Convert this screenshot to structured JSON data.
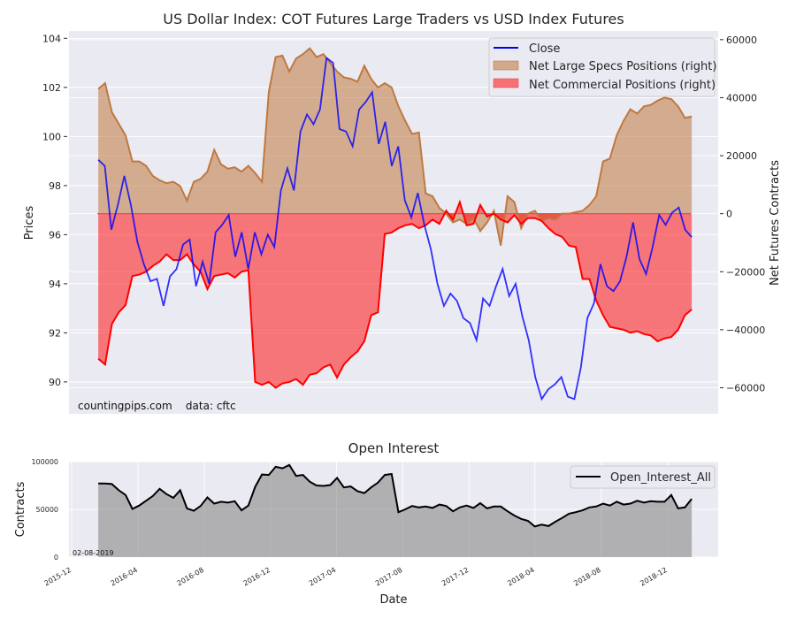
{
  "chart_data": [
    {
      "type": "line",
      "title": "US Dollar Index: COT Futures Large Traders vs USD Index Futures",
      "xlabel": "",
      "ylabel": "Prices",
      "y2label": "Net Futures Contracts",
      "ylim": [
        88.7,
        104.3
      ],
      "y2lim": [
        -69000,
        63000
      ],
      "yticks": [
        "90",
        "92",
        "94",
        "96",
        "98",
        "100",
        "102",
        "104"
      ],
      "y2ticks": [
        "−60000",
        "−40000",
        "−20000",
        "0",
        "20000",
        "40000",
        "60000"
      ],
      "grid": true,
      "legend_position": "top-right",
      "annotation": "countingpips.com    data: cftc",
      "x_start": "2016-01-19",
      "x_step_days": 14,
      "series": [
        {
          "name": "Close",
          "axis": "left",
          "style": "line",
          "color": "#0000ff",
          "values": [
            99.05,
            98.8,
            96.2,
            97.2,
            98.4,
            97.2,
            95.7,
            94.8,
            94.1,
            94.2,
            93.1,
            94.3,
            94.6,
            95.6,
            95.8,
            93.9,
            94.9,
            94.0,
            96.1,
            96.4,
            96.8,
            95.1,
            96.1,
            94.6,
            96.1,
            95.2,
            96.0,
            95.5,
            97.8,
            98.7,
            97.8,
            100.2,
            100.9,
            100.5,
            101.1,
            103.2,
            103.0,
            100.3,
            100.2,
            99.6,
            101.1,
            101.4,
            101.8,
            99.7,
            100.6,
            98.8,
            99.6,
            97.4,
            96.7,
            97.7,
            96.4,
            95.4,
            94.0,
            93.1,
            93.6,
            93.3,
            92.6,
            92.4,
            91.7,
            93.4,
            93.1,
            93.9,
            94.6,
            93.5,
            94.0,
            92.7,
            91.7,
            90.2,
            89.3,
            89.7,
            89.9,
            90.2,
            89.4,
            89.3,
            90.6,
            92.6,
            93.2,
            94.8,
            93.9,
            93.7,
            94.1,
            95.1,
            96.5,
            95.0,
            94.4,
            95.5,
            96.8,
            96.4,
            96.9,
            97.1,
            96.2,
            95.9
          ]
        },
        {
          "name": "Net Large Specs Positions (right)",
          "axis": "right",
          "style": "area",
          "color": "#c07840",
          "values": [
            43000,
            45000,
            35000,
            31000,
            27000,
            18000,
            18000,
            16500,
            13000,
            11500,
            10500,
            11000,
            9500,
            4500,
            11000,
            12000,
            14500,
            22000,
            17000,
            15500,
            16000,
            14500,
            16500,
            14000,
            11000,
            42000,
            54000,
            54500,
            49000,
            53500,
            55000,
            57000,
            54000,
            55000,
            52000,
            49000,
            47000,
            46500,
            45500,
            51000,
            46500,
            43500,
            45000,
            43500,
            37000,
            32000,
            27500,
            28000,
            7000,
            6000,
            2000,
            0,
            -3000,
            -2000,
            -3500,
            -1500,
            -6000,
            -3000,
            1000,
            -11000,
            6000,
            4000,
            -5000,
            0,
            1000,
            -2500,
            -1500,
            -2000,
            0,
            0,
            500,
            1000,
            3000,
            6000,
            18000,
            19000,
            27000,
            32000,
            36000,
            34500,
            37000,
            37500,
            39000,
            40000,
            39500,
            37000,
            33000,
            33500
          ]
        },
        {
          "name": "Net Commercial Positions (right)",
          "axis": "right",
          "style": "area",
          "color": "#ff0000",
          "values": [
            -50000,
            -52000,
            -38000,
            -34000,
            -31500,
            -21500,
            -21000,
            -20000,
            -18000,
            -16500,
            -14000,
            -16000,
            -16000,
            -14000,
            -17500,
            -20000,
            -26000,
            -21500,
            -21000,
            -20500,
            -22000,
            -20000,
            -19500,
            -58000,
            -59000,
            -58000,
            -60000,
            -58500,
            -58000,
            -57000,
            -59000,
            -55500,
            -55000,
            -53000,
            -52000,
            -56500,
            -52000,
            -49500,
            -47500,
            -44000,
            -35000,
            -34000,
            -7000,
            -6500,
            -5000,
            -4000,
            -3500,
            -5000,
            -4000,
            -2000,
            -3500,
            1000,
            -2000,
            4000,
            -4000,
            -3500,
            3000,
            -1000,
            0,
            -2000,
            -3000,
            -500,
            -3500,
            -1500,
            -1500,
            -2500,
            -5000,
            -7000,
            -8000,
            -11000,
            -11500,
            -22500,
            -22500,
            -30000,
            -35000,
            -39000,
            -39500,
            -40000,
            -41000,
            -40500,
            -41500,
            -42000,
            -44000,
            -43000,
            -42500,
            -40000,
            -35000,
            -33000
          ]
        }
      ]
    },
    {
      "type": "area",
      "title": "Open Interest",
      "xlabel": "Date",
      "ylabel": "Contracts",
      "ylim": [
        0,
        100000
      ],
      "yticks": [
        "0",
        "50000",
        "100000"
      ],
      "xticks": [
        "2015-12",
        "2016-04",
        "2016-08",
        "2016-12",
        "2017-04",
        "2017-08",
        "2017-12",
        "2018-04",
        "2018-08",
        "2018-12"
      ],
      "grid": true,
      "legend_position": "top-right",
      "annotation": "02-08-2019",
      "x_start": "2016-01-19",
      "x_step_days": 14,
      "series": [
        {
          "name": "Open_Interest_All",
          "color": "#000000",
          "fill": "#b3b2b6",
          "values": [
            77000,
            77000,
            76500,
            70000,
            65000,
            50500,
            54000,
            59000,
            64000,
            71500,
            66000,
            62000,
            70000,
            51000,
            48500,
            53500,
            62500,
            56000,
            58000,
            57000,
            58500,
            49000,
            54000,
            73500,
            86500,
            86000,
            94500,
            93000,
            96500,
            85000,
            86000,
            79000,
            75000,
            74500,
            75500,
            83000,
            73000,
            74000,
            69000,
            67000,
            73000,
            78000,
            86000,
            87000,
            47000,
            50000,
            53500,
            52000,
            53000,
            51500,
            55000,
            53500,
            48000,
            52000,
            54000,
            51500,
            56500,
            51000,
            53000,
            53000,
            48000,
            43500,
            40000,
            38000,
            32000,
            34000,
            32500,
            37000,
            41000,
            45500,
            47000,
            49000,
            52000,
            53000,
            56000,
            54000,
            58000,
            55000,
            56000,
            59000,
            57000,
            58500,
            58000,
            58000,
            65000,
            51000,
            52000,
            61000
          ]
        }
      ]
    }
  ]
}
